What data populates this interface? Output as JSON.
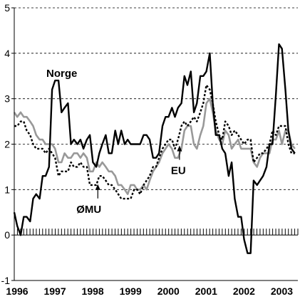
{
  "chart_data": {
    "type": "line",
    "ylim": [
      -1,
      5
    ],
    "xlim": [
      1996.0,
      2003.5
    ],
    "y_ticks": [
      -1,
      0,
      1,
      2,
      3,
      4,
      5
    ],
    "y_tick_labels": [
      "-1",
      "0",
      "1",
      "2",
      "3",
      "4",
      "5"
    ],
    "x_ticks": [
      1996,
      1997,
      1998,
      1999,
      2000,
      2001,
      2002,
      2003
    ],
    "x_tick_labels": [
      "1996",
      "1997",
      "1998",
      "1999",
      "2000",
      "2001",
      "2002",
      "2003"
    ],
    "grid": "horizontal dashed",
    "annotations": [
      {
        "text": "Norge",
        "series": "Norge"
      },
      {
        "text": "EU",
        "series": "EU",
        "arrow": true,
        "at_x": 2000.37,
        "at_y": 2.0
      },
      {
        "text": "ØMU",
        "series": "ØMU",
        "arrow": true,
        "at_x": 1998.21,
        "at_y": 1.15
      }
    ],
    "series": [
      {
        "name": "Norge",
        "color": "#000000",
        "style": "solid",
        "x": [
          1996.0,
          1996.08,
          1996.17,
          1996.25,
          1996.33,
          1996.42,
          1996.5,
          1996.58,
          1996.67,
          1996.75,
          1996.83,
          1996.92,
          1997.0,
          1997.08,
          1997.17,
          1997.25,
          1997.33,
          1997.42,
          1997.5,
          1997.58,
          1997.67,
          1997.75,
          1997.83,
          1997.92,
          1998.0,
          1998.08,
          1998.17,
          1998.25,
          1998.33,
          1998.42,
          1998.5,
          1998.58,
          1998.67,
          1998.75,
          1998.83,
          1998.92,
          1999.0,
          1999.08,
          1999.17,
          1999.25,
          1999.33,
          1999.42,
          1999.5,
          1999.58,
          1999.67,
          1999.75,
          1999.83,
          1999.92,
          2000.0,
          2000.08,
          2000.17,
          2000.25,
          2000.33,
          2000.42,
          2000.5,
          2000.58,
          2000.67,
          2000.75,
          2000.83,
          2000.92,
          2001.0,
          2001.08,
          2001.17,
          2001.25,
          2001.33,
          2001.42,
          2001.5,
          2001.58,
          2001.67,
          2001.75,
          2001.83,
          2001.92,
          2002.0,
          2002.08,
          2002.17,
          2002.25,
          2002.33,
          2002.42,
          2002.5,
          2002.58,
          2002.67,
          2002.75,
          2002.83,
          2002.92,
          2003.0,
          2003.08,
          2003.17,
          2003.25,
          2003.33,
          2003.42
        ],
        "values": [
          0.5,
          0.2,
          0.0,
          0.4,
          0.4,
          0.3,
          0.8,
          0.9,
          0.8,
          1.3,
          1.3,
          1.5,
          3.2,
          3.4,
          3.4,
          2.7,
          2.8,
          2.9,
          2.0,
          2.1,
          2.0,
          2.1,
          1.9,
          2.1,
          2.2,
          1.6,
          1.5,
          1.8,
          2.0,
          2.2,
          1.8,
          1.8,
          2.3,
          2.0,
          2.3,
          2.0,
          2.1,
          2.0,
          2.0,
          2.0,
          2.0,
          2.2,
          2.2,
          2.1,
          1.7,
          1.7,
          1.8,
          2.4,
          2.6,
          2.6,
          2.8,
          2.6,
          2.8,
          2.9,
          3.5,
          3.3,
          3.6,
          2.7,
          2.9,
          3.5,
          3.5,
          3.6,
          4.0,
          2.9,
          2.2,
          2.2,
          1.9,
          1.8,
          1.3,
          1.6,
          0.8,
          0.4,
          0.4,
          -0.1,
          -0.4,
          -0.4,
          1.2,
          1.1,
          1.2,
          1.3,
          1.5,
          2.0,
          2.0,
          3.1,
          4.2,
          4.1,
          3.2,
          2.3,
          1.9,
          1.8
        ]
      },
      {
        "name": "EU",
        "color": "#999999",
        "style": "solid",
        "x": [
          1996.0,
          1996.08,
          1996.17,
          1996.25,
          1996.33,
          1996.42,
          1996.5,
          1996.58,
          1996.67,
          1996.75,
          1996.83,
          1996.92,
          1997.0,
          1997.08,
          1997.17,
          1997.25,
          1997.33,
          1997.42,
          1997.5,
          1997.58,
          1997.67,
          1997.75,
          1997.83,
          1997.92,
          1998.0,
          1998.08,
          1998.17,
          1998.25,
          1998.33,
          1998.42,
          1998.5,
          1998.58,
          1998.67,
          1998.75,
          1998.83,
          1998.92,
          1999.0,
          1999.08,
          1999.17,
          1999.25,
          1999.33,
          1999.42,
          1999.5,
          1999.58,
          1999.67,
          1999.75,
          1999.83,
          1999.92,
          2000.0,
          2000.08,
          2000.17,
          2000.25,
          2000.33,
          2000.42,
          2000.5,
          2000.58,
          2000.67,
          2000.75,
          2000.83,
          2000.92,
          2001.0,
          2001.08,
          2001.17,
          2001.25,
          2001.33,
          2001.42,
          2001.5,
          2001.58,
          2001.67,
          2001.75,
          2001.83,
          2001.92,
          2002.0,
          2002.08,
          2002.17,
          2002.25,
          2002.33,
          2002.42,
          2002.5,
          2002.58,
          2002.67,
          2002.75,
          2002.83,
          2002.92,
          2003.0,
          2003.08,
          2003.17,
          2003.25,
          2003.33,
          2003.42
        ],
        "values": [
          2.7,
          2.6,
          2.7,
          2.6,
          2.6,
          2.5,
          2.4,
          2.2,
          2.1,
          2.1,
          2.0,
          2.0,
          2.0,
          1.9,
          1.6,
          1.6,
          1.8,
          1.7,
          1.7,
          1.8,
          1.8,
          1.7,
          1.8,
          1.7,
          1.4,
          1.4,
          1.6,
          1.5,
          1.6,
          1.5,
          1.4,
          1.4,
          1.3,
          1.1,
          1.1,
          1.0,
          0.9,
          1.1,
          1.1,
          1.0,
          1.0,
          1.1,
          1.0,
          1.2,
          1.4,
          1.5,
          1.6,
          1.8,
          1.9,
          2.0,
          1.9,
          1.7,
          1.7,
          1.9,
          2.3,
          2.4,
          2.4,
          2.0,
          1.9,
          2.2,
          2.4,
          2.9,
          3.0,
          2.7,
          2.3,
          2.1,
          2.0,
          2.3,
          2.2,
          1.9,
          2.0,
          2.1,
          1.9,
          1.9,
          1.9,
          1.9,
          1.6,
          1.5,
          1.7,
          1.8,
          1.8,
          1.8,
          2.1,
          2.1,
          2.3,
          2.0,
          2.3,
          2.3,
          2.0,
          1.9
        ]
      },
      {
        "name": "ØMU",
        "color": "#000000",
        "style": "dashed",
        "x": [
          1996.0,
          1996.08,
          1996.17,
          1996.25,
          1996.33,
          1996.42,
          1996.5,
          1996.58,
          1996.67,
          1996.75,
          1996.83,
          1996.92,
          1997.0,
          1997.08,
          1997.17,
          1997.25,
          1997.33,
          1997.42,
          1997.5,
          1997.58,
          1997.67,
          1997.75,
          1997.83,
          1997.92,
          1998.0,
          1998.08,
          1998.17,
          1998.25,
          1998.33,
          1998.42,
          1998.5,
          1998.58,
          1998.67,
          1998.75,
          1998.83,
          1998.92,
          1999.0,
          1999.08,
          1999.17,
          1999.25,
          1999.33,
          1999.42,
          1999.5,
          1999.58,
          1999.67,
          1999.75,
          1999.83,
          1999.92,
          2000.0,
          2000.08,
          2000.17,
          2000.25,
          2000.33,
          2000.42,
          2000.5,
          2000.58,
          2000.67,
          2000.75,
          2000.83,
          2000.92,
          2001.0,
          2001.08,
          2001.17,
          2001.25,
          2001.33,
          2001.42,
          2001.5,
          2001.58,
          2001.67,
          2001.75,
          2001.83,
          2001.92,
          2002.0,
          2002.08,
          2002.17,
          2002.25,
          2002.33,
          2002.42,
          2002.5,
          2002.58,
          2002.67,
          2002.75,
          2002.83,
          2002.92,
          2003.0,
          2003.08,
          2003.17,
          2003.25,
          2003.33,
          2003.42
        ],
        "values": [
          2.4,
          2.4,
          2.5,
          2.5,
          2.3,
          2.2,
          2.0,
          1.9,
          1.9,
          1.9,
          1.8,
          1.9,
          1.8,
          1.7,
          1.3,
          1.4,
          1.4,
          1.4,
          1.6,
          1.5,
          1.5,
          1.6,
          1.5,
          1.5,
          1.1,
          1.1,
          1.1,
          1.3,
          1.3,
          1.2,
          1.1,
          1.1,
          1.0,
          0.9,
          0.8,
          0.8,
          0.8,
          0.8,
          1.0,
          1.0,
          0.9,
          1.1,
          1.2,
          1.3,
          1.5,
          1.5,
          1.7,
          1.9,
          2.0,
          2.1,
          2.1,
          1.9,
          2.1,
          2.4,
          2.5,
          2.4,
          2.5,
          2.6,
          2.5,
          2.7,
          2.9,
          3.3,
          3.2,
          2.9,
          2.5,
          2.2,
          2.1,
          2.5,
          2.4,
          2.2,
          2.3,
          2.2,
          2.1,
          2.0,
          2.1,
          2.1,
          1.6,
          1.7,
          1.8,
          1.8,
          1.9,
          2.0,
          2.3,
          2.2,
          2.4,
          2.4,
          2.4,
          2.0,
          1.8,
          1.8
        ]
      }
    ]
  }
}
